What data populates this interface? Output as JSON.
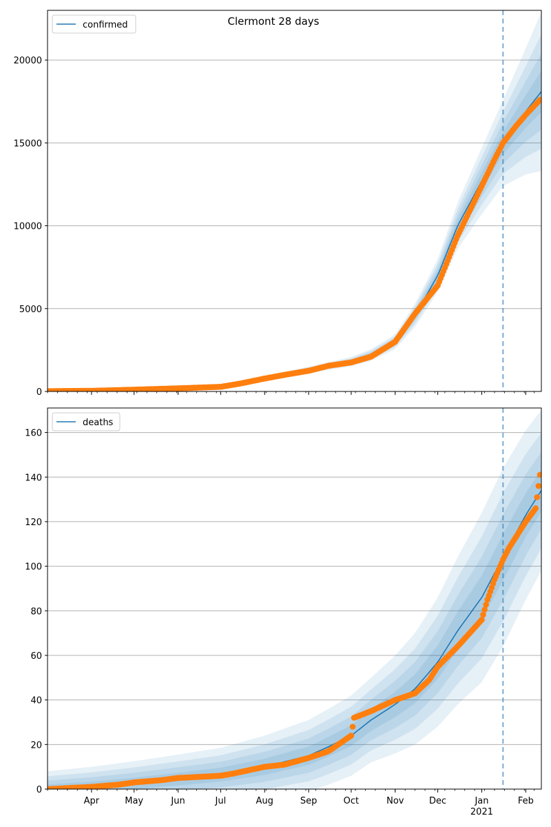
{
  "title": "Clermont 28 days",
  "colors": {
    "model": "#1f77b4",
    "observed": "#ff7f0e",
    "band": "#1f77b4",
    "grid": "#b0b0b0",
    "vline": "#1f77b4"
  },
  "chart_data": [
    {
      "type": "line",
      "title": "Clermont 28 days",
      "legend": [
        "confirmed"
      ],
      "legend_position": "top-left",
      "xlim": [
        "2020-03-01",
        "2021-02-12"
      ],
      "ylim": [
        0,
        23000
      ],
      "yticks": [
        0,
        5000,
        10000,
        15000,
        20000
      ],
      "grid": "y",
      "forecast_start": "2021-01-16",
      "series": [
        {
          "name": "confirmed",
          "kind": "model",
          "x": [
            "2020-03-01",
            "2020-04-01",
            "2020-05-01",
            "2020-06-01",
            "2020-07-01",
            "2020-08-01",
            "2020-09-01",
            "2020-10-01",
            "2020-10-15",
            "2020-11-01",
            "2020-11-15",
            "2020-12-01",
            "2020-12-15",
            "2021-01-01",
            "2021-01-16",
            "2021-02-01",
            "2021-02-12"
          ],
          "y": [
            0,
            30,
            110,
            210,
            300,
            800,
            1300,
            1800,
            2200,
            3000,
            4600,
            7000,
            10000,
            12700,
            15000,
            16900,
            18100
          ],
          "band_inner": [
            0,
            0,
            0,
            0,
            0,
            50,
            80,
            120,
            160,
            220,
            320,
            420,
            520,
            600,
            650,
            900,
            1100
          ],
          "band_outer": [
            0,
            0,
            0,
            0,
            0,
            120,
            200,
            280,
            350,
            450,
            700,
            1000,
            1400,
            2000,
            2600,
            3800,
            4800
          ]
        },
        {
          "kind": "observed",
          "x": [
            "2020-03-01",
            "2020-04-01",
            "2020-05-01",
            "2020-06-01",
            "2020-07-01",
            "2020-07-15",
            "2020-08-01",
            "2020-08-15",
            "2020-09-01",
            "2020-09-15",
            "2020-10-01",
            "2020-10-15",
            "2020-11-01",
            "2020-11-15",
            "2020-12-01",
            "2020-12-15",
            "2021-01-01",
            "2021-01-10",
            "2021-01-16",
            "2021-01-25",
            "2021-02-01",
            "2021-02-11"
          ],
          "y": [
            20,
            40,
            110,
            190,
            280,
            480,
            780,
            1000,
            1250,
            1550,
            1750,
            2100,
            3000,
            4700,
            6400,
            9400,
            12400,
            14000,
            15000,
            16000,
            16700,
            17600
          ]
        }
      ]
    },
    {
      "type": "line",
      "legend": [
        "deaths"
      ],
      "legend_position": "top-left",
      "xlim": [
        "2020-03-01",
        "2021-02-12"
      ],
      "ylim": [
        0,
        171
      ],
      "yticks": [
        0,
        20,
        40,
        60,
        80,
        100,
        120,
        140,
        160
      ],
      "xticks": [
        "Apr",
        "May",
        "Jun",
        "Jul",
        "Aug",
        "Sep",
        "Oct",
        "Nov",
        "Dec",
        "Jan",
        "Feb"
      ],
      "xtick_dates": [
        "2020-04-01",
        "2020-05-01",
        "2020-06-01",
        "2020-07-01",
        "2020-08-01",
        "2020-09-01",
        "2020-10-01",
        "2020-11-01",
        "2020-12-01",
        "2021-01-01",
        "2021-02-01"
      ],
      "year_label": "2021",
      "grid": "y",
      "forecast_start": "2021-01-16",
      "series": [
        {
          "name": "deaths",
          "kind": "model",
          "x": [
            "2020-03-01",
            "2020-04-01",
            "2020-05-01",
            "2020-06-01",
            "2020-07-01",
            "2020-08-01",
            "2020-09-01",
            "2020-09-15",
            "2020-10-01",
            "2020-10-15",
            "2020-11-01",
            "2020-11-15",
            "2020-12-01",
            "2020-12-15",
            "2021-01-01",
            "2021-01-16",
            "2021-02-01",
            "2021-02-12"
          ],
          "y": [
            0,
            1,
            2.5,
            4.5,
            6.5,
            10,
            15,
            19,
            24,
            31,
            38,
            45,
            57,
            71,
            86,
            104,
            123,
            134
          ],
          "band_inner": [
            2,
            3,
            3.5,
            4,
            4.5,
            5,
            6,
            6.5,
            7,
            7.5,
            9,
            10,
            12,
            14,
            16,
            18,
            12,
            10
          ],
          "band_outer": [
            8,
            9,
            10,
            11,
            12,
            14,
            16,
            17,
            18,
            19,
            22,
            25,
            29,
            33,
            38,
            40,
            38,
            36
          ]
        },
        {
          "kind": "observed",
          "x": [
            "2020-03-01",
            "2020-04-01",
            "2020-04-20",
            "2020-05-01",
            "2020-05-20",
            "2020-06-01",
            "2020-07-01",
            "2020-07-10",
            "2020-08-01",
            "2020-08-15",
            "2020-09-01",
            "2020-09-15",
            "2020-10-01",
            "2020-10-03",
            "2020-10-15",
            "2020-11-01",
            "2020-11-15",
            "2020-11-25",
            "2020-12-01",
            "2020-12-15",
            "2021-01-01",
            "2021-01-05",
            "2021-01-10",
            "2021-01-16",
            "2021-01-20",
            "2021-01-25",
            "2021-02-01",
            "2021-02-08",
            "2021-02-11"
          ],
          "y": [
            0,
            1,
            2,
            3,
            4,
            5,
            6,
            7,
            10,
            11,
            14,
            17,
            24,
            32,
            35,
            40,
            43,
            49,
            55,
            64,
            76,
            85,
            94,
            103,
            108,
            113,
            120,
            126,
            141
          ]
        }
      ]
    }
  ]
}
